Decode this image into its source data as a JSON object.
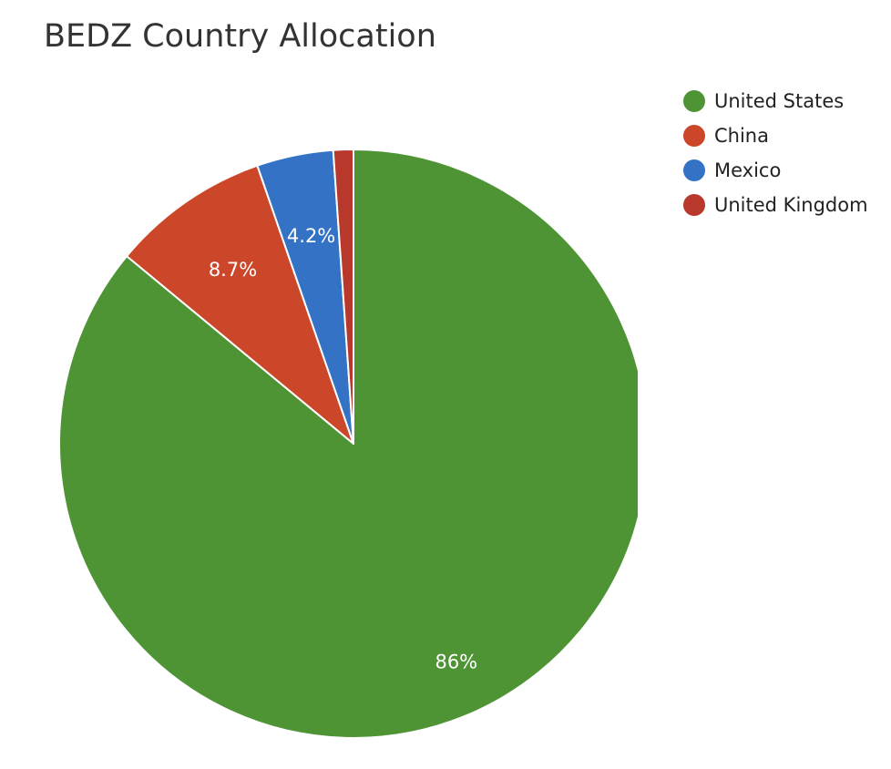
{
  "chart_data": {
    "type": "pie",
    "title": "BEDZ Country Allocation",
    "slices": [
      {
        "label": "United States",
        "value": 86,
        "display": "86%",
        "color": "#4e9435"
      },
      {
        "label": "China",
        "value": 8.7,
        "display": "8.7%",
        "color": "#cc4729"
      },
      {
        "label": "Mexico",
        "value": 4.2,
        "display": "4.2%",
        "color": "#3372c5"
      },
      {
        "label": "United Kingdom",
        "value": 1.1,
        "display": "",
        "color": "#b8382b"
      }
    ],
    "legend_position": "top-right"
  }
}
